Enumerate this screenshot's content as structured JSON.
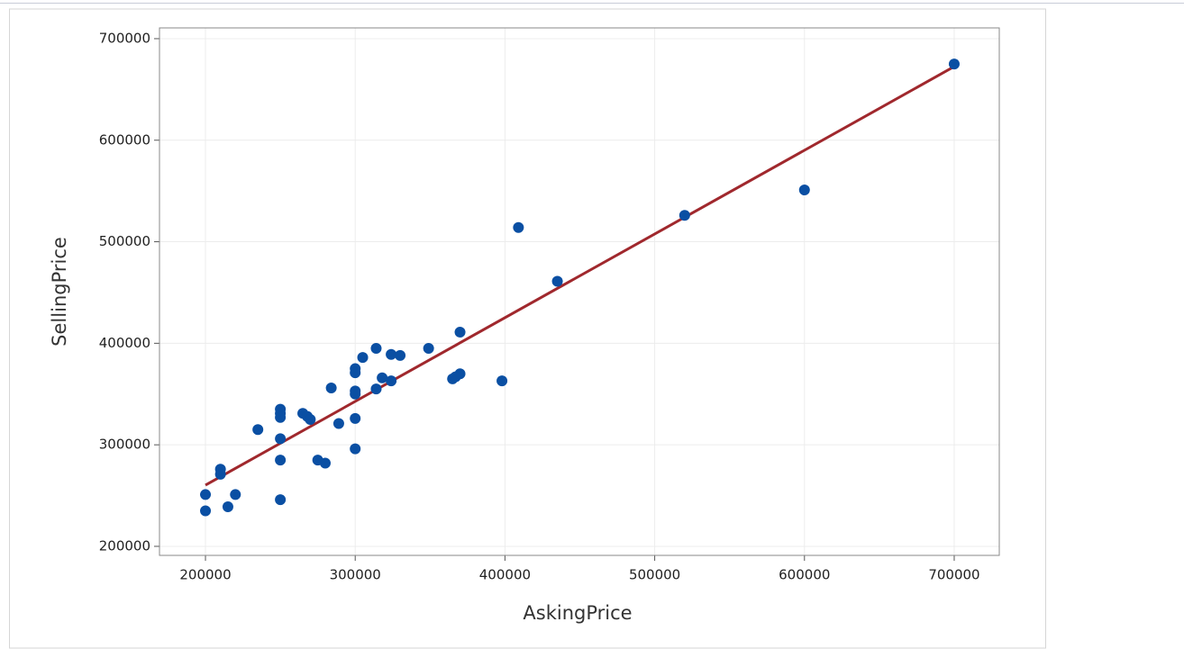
{
  "chart_data": {
    "type": "scatter",
    "x_label": "AskingPrice",
    "y_label": "SellingPrice",
    "xlim": [
      169300,
      730100
    ],
    "ylim": [
      191100,
      710600
    ],
    "xticks": [
      200000,
      300000,
      400000,
      500000,
      600000,
      700000
    ],
    "yticks": [
      200000,
      300000,
      400000,
      500000,
      600000,
      700000
    ],
    "grid": true,
    "series": [
      {
        "color": "#0a4fa3",
        "x": [
          200000,
          200000,
          210000,
          210000,
          215000,
          220000,
          235000,
          250000,
          250000,
          250000,
          250000,
          250000,
          250000,
          265000,
          268000,
          270000,
          275000,
          280000,
          284000,
          289000,
          300000,
          300000,
          300000,
          300000,
          300000,
          300000,
          305000,
          314000,
          314000,
          318000,
          324000,
          324000,
          330000,
          349000,
          365000,
          367000,
          370000,
          370000,
          398000,
          409000,
          435000,
          520000,
          600000,
          700000
        ],
        "values": [
          251000,
          235000,
          276000,
          271000,
          239000,
          251000,
          315000,
          335000,
          331000,
          327000,
          306000,
          285000,
          246000,
          331000,
          328000,
          325000,
          285000,
          282000,
          356000,
          321000,
          375000,
          371000,
          353000,
          350000,
          326000,
          296000,
          386000,
          395000,
          355000,
          366000,
          389000,
          363000,
          388000,
          395000,
          365000,
          367000,
          370000,
          411000,
          363000,
          514000,
          461000,
          526000,
          551000,
          675000
        ]
      }
    ],
    "fit_line": {
      "color": "#a0282d",
      "x": [
        200000,
        700000
      ],
      "values": [
        260300,
        672500
      ]
    }
  }
}
